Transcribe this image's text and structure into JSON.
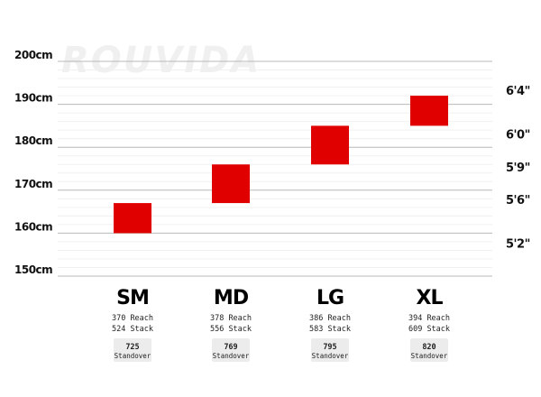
{
  "watermark": "ROUVIDA",
  "chart_data": {
    "type": "range",
    "title": "",
    "ylabel": "",
    "xlabel": "",
    "ylim": [
      150,
      200
    ],
    "y_ticks": [
      "150cm",
      "160cm",
      "170cm",
      "180cm",
      "190cm",
      "200cm"
    ],
    "y_tick_values": [
      150,
      160,
      170,
      180,
      190,
      200
    ],
    "right_ticks": [
      {
        "label": "6'4\"",
        "value": 193.04
      },
      {
        "label": "6'0\"",
        "value": 182.88
      },
      {
        "label": "5'9\"",
        "value": 175.26
      },
      {
        "label": "5'6\"",
        "value": 167.64
      },
      {
        "label": "5'2\"",
        "value": 157.48
      }
    ],
    "grid": true,
    "bar_color": "#e00000",
    "categories": [
      "SM",
      "MD",
      "LG",
      "XL"
    ],
    "ranges": [
      {
        "low": 160,
        "high": 167
      },
      {
        "low": 167,
        "high": 176
      },
      {
        "low": 176,
        "high": 185
      },
      {
        "low": 185,
        "high": 192
      }
    ],
    "specs": [
      {
        "reach": "370 Reach",
        "stack": "524 Stack",
        "standover": "725",
        "standover_label": "Standover"
      },
      {
        "reach": "378 Reach",
        "stack": "556 Stack",
        "standover": "769",
        "standover_label": "Standover"
      },
      {
        "reach": "386 Reach",
        "stack": "583 Stack",
        "standover": "795",
        "standover_label": "Standover"
      },
      {
        "reach": "394 Reach",
        "stack": "609 Stack",
        "standover": "820",
        "standover_label": "Standover"
      }
    ]
  }
}
